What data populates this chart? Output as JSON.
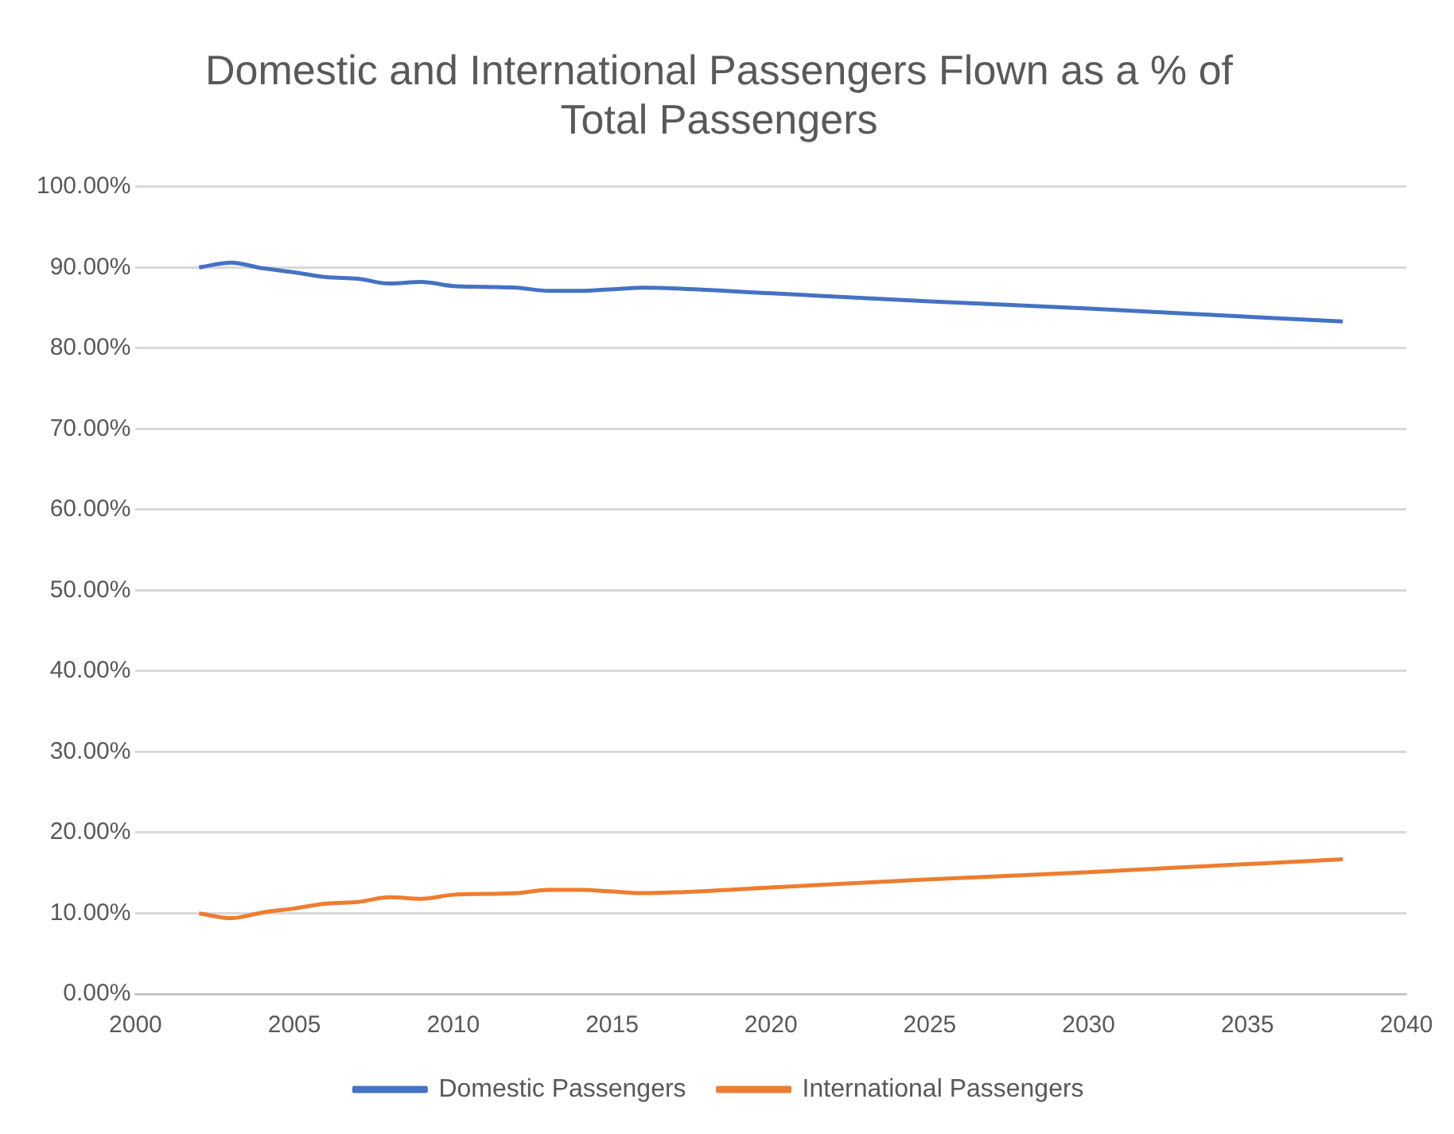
{
  "chart_data": {
    "type": "line",
    "title": "Domestic and International Passengers Flown as a % of Total Passengers",
    "x": [
      2002,
      2003,
      2004,
      2005,
      2006,
      2007,
      2008,
      2009,
      2010,
      2011,
      2012,
      2013,
      2014,
      2015,
      2016,
      2017,
      2020,
      2025,
      2030,
      2035,
      2038
    ],
    "series": [
      {
        "name": "Domestic Passengers",
        "color": "#4472c4",
        "values": [
          90.0,
          90.6,
          89.9,
          89.4,
          88.8,
          88.6,
          88.0,
          88.2,
          87.7,
          87.6,
          87.5,
          87.1,
          87.1,
          87.3,
          87.5,
          87.4,
          86.8,
          85.8,
          84.9,
          83.9,
          83.3
        ]
      },
      {
        "name": "International Passengers",
        "color": "#ed7d31",
        "values": [
          10.0,
          9.4,
          10.1,
          10.6,
          11.2,
          11.4,
          12.0,
          11.8,
          12.3,
          12.4,
          12.5,
          12.9,
          12.9,
          12.7,
          12.5,
          12.6,
          13.2,
          14.2,
          15.1,
          16.1,
          16.7
        ]
      }
    ],
    "xlim": [
      2000,
      2040
    ],
    "xticks": [
      2000,
      2005,
      2010,
      2015,
      2020,
      2025,
      2030,
      2035,
      2040
    ],
    "ylim": [
      0,
      100
    ],
    "yticks": [
      {
        "value": 0,
        "label": "0.00%"
      },
      {
        "value": 10,
        "label": "10.00%"
      },
      {
        "value": 20,
        "label": "20.00%"
      },
      {
        "value": 30,
        "label": "30.00%"
      },
      {
        "value": 40,
        "label": "40.00%"
      },
      {
        "value": 50,
        "label": "50.00%"
      },
      {
        "value": 60,
        "label": "60.00%"
      },
      {
        "value": 70,
        "label": "70.00%"
      },
      {
        "value": 80,
        "label": "80.00%"
      },
      {
        "value": 90,
        "label": "90.00%"
      },
      {
        "value": 100,
        "label": "100.00%"
      }
    ],
    "grid": "y",
    "legend": "bottom",
    "marker": "none",
    "line_style": "solid"
  }
}
